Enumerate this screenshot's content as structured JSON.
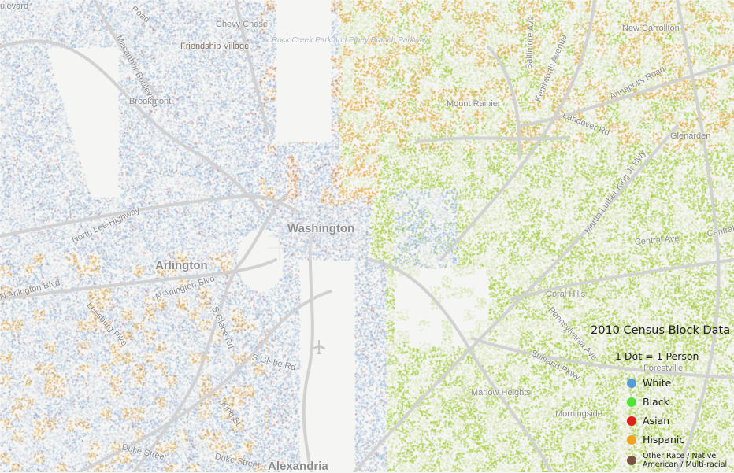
{
  "legend": {
    "title": "2010 Census Block Data",
    "subtitle": "1 Dot = 1 Person",
    "items": [
      {
        "label": "White",
        "color": "#5b9bd5"
      },
      {
        "label": "Black",
        "color": "#4fe33a"
      },
      {
        "label": "Asian",
        "color": "#e0201c"
      },
      {
        "label": "Hispanic",
        "color": "#f0a21e"
      },
      {
        "label": "Other Race / Native American / Multi-racial",
        "color": "#7a5440"
      }
    ]
  },
  "dot_colors": {
    "white": "#8fb0d8",
    "black": "#9cc82c",
    "hispanic": "#e3a22a",
    "asian": "#d0453a",
    "other": "#8a6a50"
  },
  "places": {
    "washington": "Washington",
    "arlington": "Arlington",
    "alexandria": "Alexandria",
    "chevy_chase": "Chevy Chase",
    "friendship_village": "Friendship Village",
    "brookmont": "Brookmont",
    "new_carrollton": "New Carrollton",
    "mount_rainier": "Mount Rainier",
    "glenarden": "Glenarden",
    "coral_hills": "Coral Hills",
    "forestville": "Forestville",
    "marlow_heights": "Marlow Heights",
    "morningside": "Morningside",
    "rock_creek": "Rock Creek Park and Piney Branch Parkway"
  },
  "roads": {
    "boulevard": "ulevard",
    "road": "Road",
    "macarthur": "Macarthur Boulevard",
    "baltimore": "Baltimore Ave",
    "kenilworth": "Kenilworth Avenue",
    "annapolis": "Annapolis Road",
    "landover": "Landover Rd",
    "north_lee": "North Lee Highway",
    "n_arlington_1": "N Arlington Blvd",
    "n_arlington_2": "N Arlington Blvd",
    "leesburg": "Leesburg Pike",
    "s_glebe_1": "S Glebe Rd",
    "s_glebe_2": "S Glebe Rd",
    "king": "King St",
    "duke_1": "Duke Street",
    "duke_2": "Duke Street",
    "mlk": "Martin Luther King Jr Hwy",
    "central_1": "Central Ave",
    "central_2": "Central",
    "pennsylvania": "Pennsylvania Ave",
    "suitland": "Suitland Pkwy"
  }
}
